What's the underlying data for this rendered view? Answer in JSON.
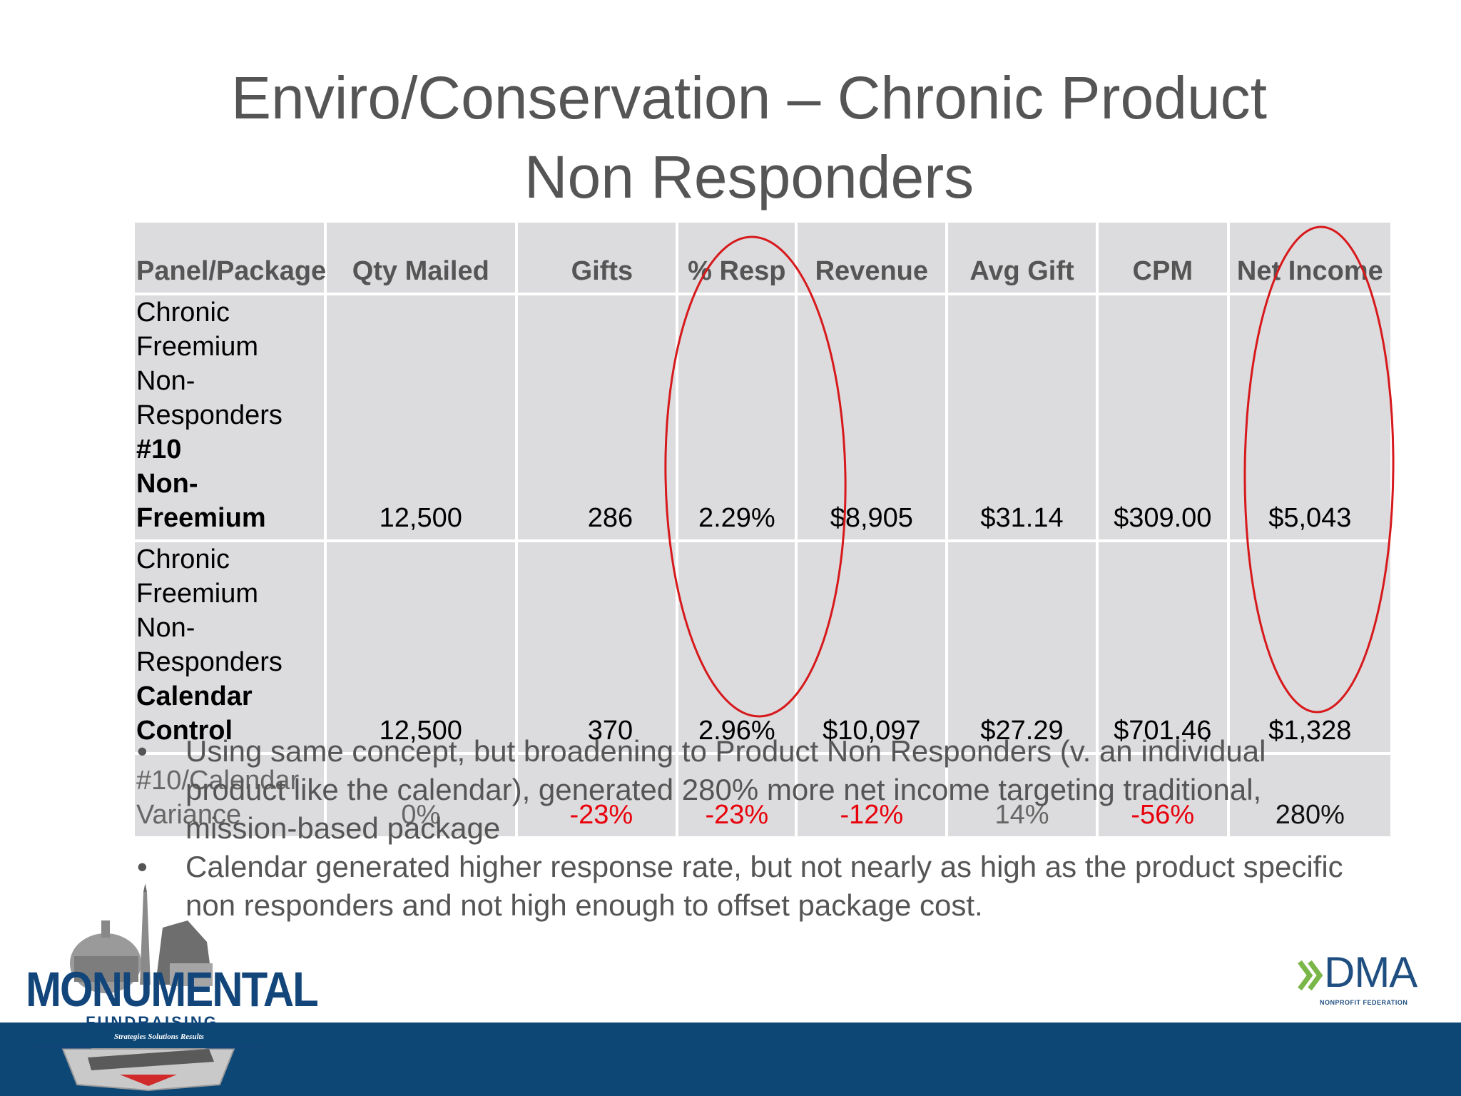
{
  "title": {
    "line1": "Enviro/Conservation – Chronic Product",
    "line2": "Non Responders"
  },
  "table": {
    "headers": [
      "Panel/Package",
      "Qty Mailed",
      "Gifts",
      "% Resp",
      "Revenue",
      "Avg Gift",
      "CPM",
      "Net Income"
    ],
    "rows": [
      {
        "label_plain": "Chronic Freemium Non-Responders",
        "label_bold_inline": "#10",
        "label_bold": "Non-Freemium",
        "qty": "12,500",
        "gifts": "286",
        "resp": "2.29%",
        "revenue": "$8,905",
        "avg_gift": "$31.14",
        "cpm": "$309.00",
        "net_income": "$5,043"
      },
      {
        "label_plain": "Chronic Freemium Non-Responders",
        "label_bold": "Calendar Control",
        "qty": "12,500",
        "gifts": "370",
        "resp": "2.96%",
        "revenue": "$10,097",
        "avg_gift": "$27.29",
        "cpm": "$701.46",
        "net_income": "$1,328"
      },
      {
        "label": "#10/Calendar Variance",
        "qty": "0%",
        "gifts": "-23%",
        "resp": "-23%",
        "revenue": "-12%",
        "avg_gift": "14%",
        "cpm": "-56%",
        "net_income": "280%"
      }
    ]
  },
  "bullets": [
    "Using same concept, but broadening to Product Non Responders (v. an individual product like the calendar), generated 280% more net income targeting traditional, mission-based package",
    "Calendar generated higher response rate, but not nearly as high as the product specific non responders and not high enough to offset package cost."
  ],
  "bullet_marker": "•",
  "logos": {
    "left_name": "MONUMENTAL",
    "left_sub": "FUNDRAISING",
    "left_tagline": "Strategies  Solutions  Results",
    "right_name": "DMA",
    "right_sub": "NONPROFIT FEDERATION"
  },
  "colors": {
    "table_fill": "#dcdcde",
    "header_text": "#555555",
    "negative": "#e8000b",
    "highlight_ellipse": "#d7191c",
    "footer_band": "#0c4776",
    "brand_blue": "#12457a",
    "dma_green": "#7ab648"
  }
}
